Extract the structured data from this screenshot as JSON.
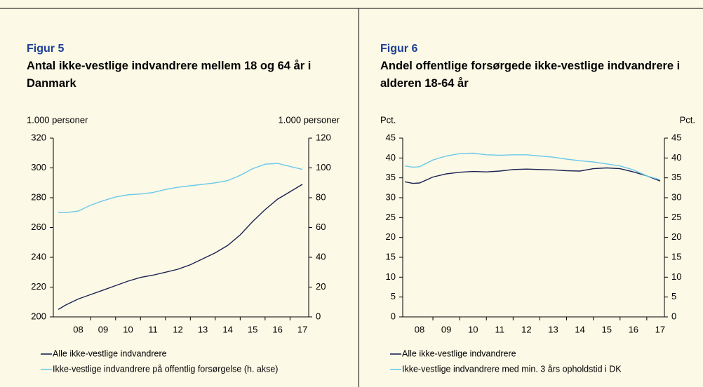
{
  "chart_data": [
    {
      "type": "line",
      "label": "Figur 5",
      "title": "Antal ikke-vestlige indvandrere mellem 18 og 64 år i Danmark",
      "ylabel": "1.000 personer",
      "y2label": "1.000 personer",
      "x": [
        7.2,
        7.5,
        8,
        8.5,
        9,
        9.5,
        10,
        10.5,
        11,
        11.5,
        12,
        12.5,
        13,
        13.5,
        14,
        14.5,
        15,
        15.5,
        16,
        16.5,
        17
      ],
      "xlim": [
        7.0,
        17.25
      ],
      "xticks": [
        {
          "value": 8,
          "label": "08"
        },
        {
          "value": 9,
          "label": "09"
        },
        10,
        11,
        12,
        13,
        14,
        15,
        16,
        17
      ],
      "ylim": [
        200,
        320
      ],
      "yticks": [
        200,
        220,
        240,
        260,
        280,
        300,
        320
      ],
      "y2lim": [
        0,
        120
      ],
      "y2ticks": [
        0,
        20,
        40,
        60,
        80,
        100,
        120
      ],
      "series": [
        {
          "name": "Alle ikke-vestlige indvandrere",
          "color": "#1b2252",
          "values": [
            205,
            208,
            212,
            215,
            218,
            221,
            224,
            226.5,
            228,
            230,
            232,
            235,
            239,
            243,
            248,
            255,
            264,
            272,
            279,
            284,
            289
          ]
        },
        {
          "name": "Ikke-vestlige indvandrere på offentlig forsørgelse (h. akse)",
          "color": "#6cc8ea",
          "axis": "y2",
          "values": [
            70,
            70,
            71,
            75,
            78,
            80.5,
            82,
            82.5,
            83.5,
            85.5,
            87,
            88,
            89,
            90,
            91.5,
            95,
            99.5,
            102.5,
            103,
            101,
            99
          ]
        }
      ]
    },
    {
      "type": "line",
      "label": "Figur 6",
      "title": "Andel offentlige forsørgede ikke-vestlige indvandrere i alderen 18-64 år",
      "ylabel": "Pct.",
      "y2label": "Pct.",
      "x": [
        7.45,
        7.75,
        8,
        8.5,
        9,
        9.5,
        10,
        10.5,
        11,
        11.5,
        12,
        12.5,
        13,
        13.5,
        14,
        14.5,
        15,
        15.5,
        16,
        16.5,
        17
      ],
      "xlim": [
        7.37,
        17.16
      ],
      "xticks": [
        {
          "value": 8,
          "label": "08"
        },
        {
          "value": 9,
          "label": "09"
        },
        10,
        11,
        12,
        13,
        14,
        15,
        16,
        17
      ],
      "ylim": [
        0,
        45
      ],
      "yticks": [
        0,
        5,
        10,
        15,
        20,
        25,
        30,
        35,
        40,
        45
      ],
      "y2lim": [
        0,
        45
      ],
      "y2ticks": [
        0,
        5,
        10,
        15,
        20,
        25,
        30,
        35,
        40,
        45
      ],
      "series": [
        {
          "name": "Alle ikke-vestlige indvandrere",
          "color": "#1b2252",
          "values": [
            34,
            33.6,
            33.7,
            35.2,
            36.0,
            36.4,
            36.6,
            36.5,
            36.7,
            37.1,
            37.2,
            37.1,
            37.0,
            36.8,
            36.7,
            37.3,
            37.5,
            37.3,
            36.5,
            35.5,
            34.2
          ]
        },
        {
          "name": "Ikke-vestlige indvandrere med min. 3 års opholdstid i DK",
          "color": "#6cc8ea",
          "axis": "y2",
          "values": [
            38,
            37.7,
            37.8,
            39.5,
            40.5,
            41.1,
            41.2,
            40.8,
            40.7,
            40.8,
            40.8,
            40.5,
            40.2,
            39.7,
            39.3,
            39.0,
            38.5,
            38.0,
            37.0,
            35.5,
            34.5
          ]
        }
      ]
    }
  ]
}
